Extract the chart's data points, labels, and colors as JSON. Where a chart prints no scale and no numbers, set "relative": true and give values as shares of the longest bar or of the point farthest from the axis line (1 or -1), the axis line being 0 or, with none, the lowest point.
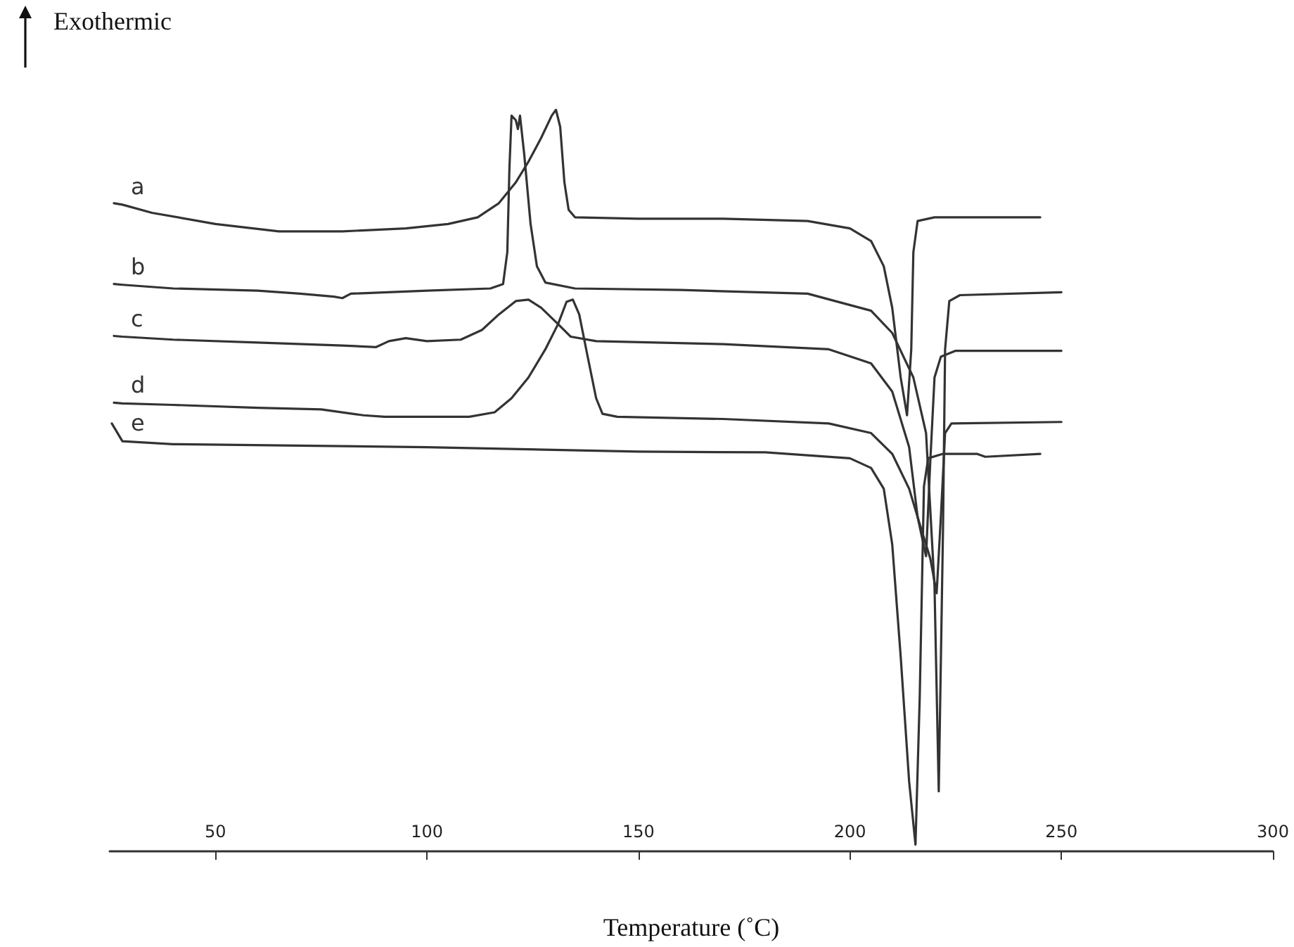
{
  "chart_data": {
    "type": "line",
    "relative": true,
    "xlabel": "Temperature (˚C)",
    "ylabel": "Exothermic",
    "xlim": [
      25,
      300
    ],
    "xticks": [
      50,
      100,
      150,
      200,
      250,
      300
    ],
    "legend": false,
    "marker": "none",
    "line_style": "solid",
    "series": [
      {
        "name": "a",
        "color": "#333333",
        "x": [
          26,
          28,
          35,
          50,
          65,
          80,
          95,
          105,
          112,
          117,
          121,
          124,
          127,
          129.5,
          130.5,
          131.5,
          132.5,
          133.5,
          135,
          150,
          170,
          190,
          200,
          205,
          208,
          210,
          212,
          213.5,
          214.5,
          215,
          216,
          220,
          245
        ],
        "values": [
          0.874,
          0.872,
          0.861,
          0.846,
          0.836,
          0.836,
          0.84,
          0.846,
          0.855,
          0.874,
          0.902,
          0.93,
          0.962,
          0.992,
          1.0,
          0.977,
          0.902,
          0.865,
          0.855,
          0.853,
          0.853,
          0.85,
          0.84,
          0.823,
          0.789,
          0.733,
          0.639,
          0.588,
          0.677,
          0.808,
          0.85,
          0.855,
          0.855
        ]
      },
      {
        "name": "b",
        "color": "#333333",
        "x": [
          26,
          28,
          40,
          60,
          70,
          78,
          80,
          82,
          100,
          115,
          118,
          119,
          119.5,
          120,
          121,
          121.5,
          122,
          123,
          124.5,
          126,
          128,
          135,
          160,
          190,
          205,
          210,
          215,
          218,
          220,
          221,
          222,
          222.5,
          223.5,
          226,
          250
        ],
        "values": [
          0.765,
          0.764,
          0.759,
          0.756,
          0.752,
          0.748,
          0.746,
          0.752,
          0.756,
          0.759,
          0.765,
          0.808,
          0.921,
          0.992,
          0.986,
          0.974,
          0.992,
          0.94,
          0.846,
          0.789,
          0.767,
          0.759,
          0.757,
          0.752,
          0.729,
          0.699,
          0.639,
          0.564,
          0.357,
          0.081,
          0.432,
          0.677,
          0.742,
          0.75,
          0.754
        ]
      },
      {
        "name": "c",
        "color": "#333333",
        "x": [
          26,
          28,
          40,
          60,
          80,
          88,
          91,
          95,
          100,
          108,
          113,
          117,
          121,
          124,
          127,
          131,
          134,
          140,
          170,
          195,
          205,
          210,
          214,
          216,
          218,
          219,
          220,
          221.5,
          225,
          250
        ],
        "values": [
          0.695,
          0.694,
          0.69,
          0.686,
          0.682,
          0.68,
          0.688,
          0.692,
          0.688,
          0.69,
          0.703,
          0.724,
          0.742,
          0.744,
          0.733,
          0.711,
          0.694,
          0.688,
          0.684,
          0.677,
          0.658,
          0.62,
          0.545,
          0.451,
          0.398,
          0.526,
          0.639,
          0.667,
          0.675,
          0.675
        ]
      },
      {
        "name": "d",
        "color": "#333333",
        "x": [
          26,
          28,
          40,
          60,
          75,
          85,
          90,
          110,
          116,
          120,
          124,
          128,
          131,
          133,
          134.5,
          136,
          138,
          140,
          141.5,
          145,
          170,
          195,
          205,
          210,
          214,
          217,
          219,
          220.5,
          221.5,
          222.5,
          224,
          250
        ],
        "values": [
          0.605,
          0.604,
          0.602,
          0.598,
          0.596,
          0.588,
          0.586,
          0.586,
          0.592,
          0.611,
          0.639,
          0.677,
          0.711,
          0.741,
          0.744,
          0.724,
          0.667,
          0.611,
          0.59,
          0.586,
          0.583,
          0.577,
          0.564,
          0.536,
          0.489,
          0.432,
          0.395,
          0.348,
          0.451,
          0.564,
          0.577,
          0.579
        ]
      },
      {
        "name": "e",
        "color": "#333333",
        "x": [
          25.5,
          28,
          40,
          100,
          150,
          180,
          200,
          205,
          208,
          210,
          212,
          214,
          215.5,
          216.5,
          217.5,
          218.5,
          222,
          230,
          232,
          245
        ],
        "values": [
          0.577,
          0.553,
          0.549,
          0.545,
          0.539,
          0.538,
          0.53,
          0.517,
          0.489,
          0.414,
          0.263,
          0.094,
          0.009,
          0.207,
          0.492,
          0.53,
          0.536,
          0.536,
          0.532,
          0.536
        ]
      }
    ]
  }
}
